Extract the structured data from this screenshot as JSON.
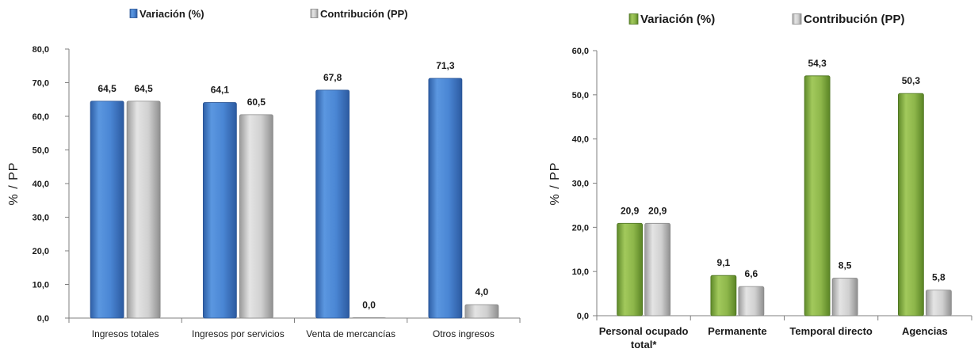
{
  "colors": {
    "blue": "#4a86d4",
    "blue_dark": "#2e5fa6",
    "gray": "#cfcfcf",
    "gray_dark": "#9a9a9a",
    "green": "#8db64a",
    "green_dark": "#5f8a2a"
  },
  "chart_data": [
    {
      "type": "bar",
      "legend_position": "top",
      "ylabel": "% / PP",
      "ylim": [
        0,
        80
      ],
      "yticks": [
        "0,0",
        "10,0",
        "20,0",
        "30,0",
        "40,0",
        "50,0",
        "60,0",
        "70,0",
        "80,0"
      ],
      "categories": [
        "Ingresos totales",
        "Ingresos por servicios",
        "Venta de mercancías",
        "Otros ingresos"
      ],
      "series": [
        {
          "name": "Variación (%)",
          "values": [
            64.5,
            64.1,
            67.8,
            71.3
          ],
          "labels": [
            "64,5",
            "64,1",
            "67,8",
            "71,3"
          ]
        },
        {
          "name": "Contribución (PP)",
          "values": [
            64.5,
            60.5,
            0.0,
            4.0
          ],
          "labels": [
            "64,5",
            "60,5",
            "0,0",
            "4,0"
          ]
        }
      ]
    },
    {
      "type": "bar",
      "legend_position": "top",
      "ylabel": "% / PP",
      "ylim": [
        0,
        60
      ],
      "yticks": [
        "0,0",
        "10,0",
        "20,0",
        "30,0",
        "40,0",
        "50,0",
        "60,0"
      ],
      "categories": [
        [
          "Personal ocupado",
          "total*"
        ],
        [
          "Permanente"
        ],
        [
          "Temporal directo"
        ],
        [
          "Agencias"
        ]
      ],
      "series": [
        {
          "name": "Variación (%)",
          "values": [
            20.9,
            9.1,
            54.3,
            50.3
          ],
          "labels": [
            "20,9",
            "9,1",
            "54,3",
            "50,3"
          ]
        },
        {
          "name": "Contribución (PP)",
          "values": [
            20.9,
            6.6,
            8.5,
            5.8
          ],
          "labels": [
            "20,9",
            "6,6",
            "8,5",
            "5,8"
          ]
        }
      ]
    }
  ]
}
